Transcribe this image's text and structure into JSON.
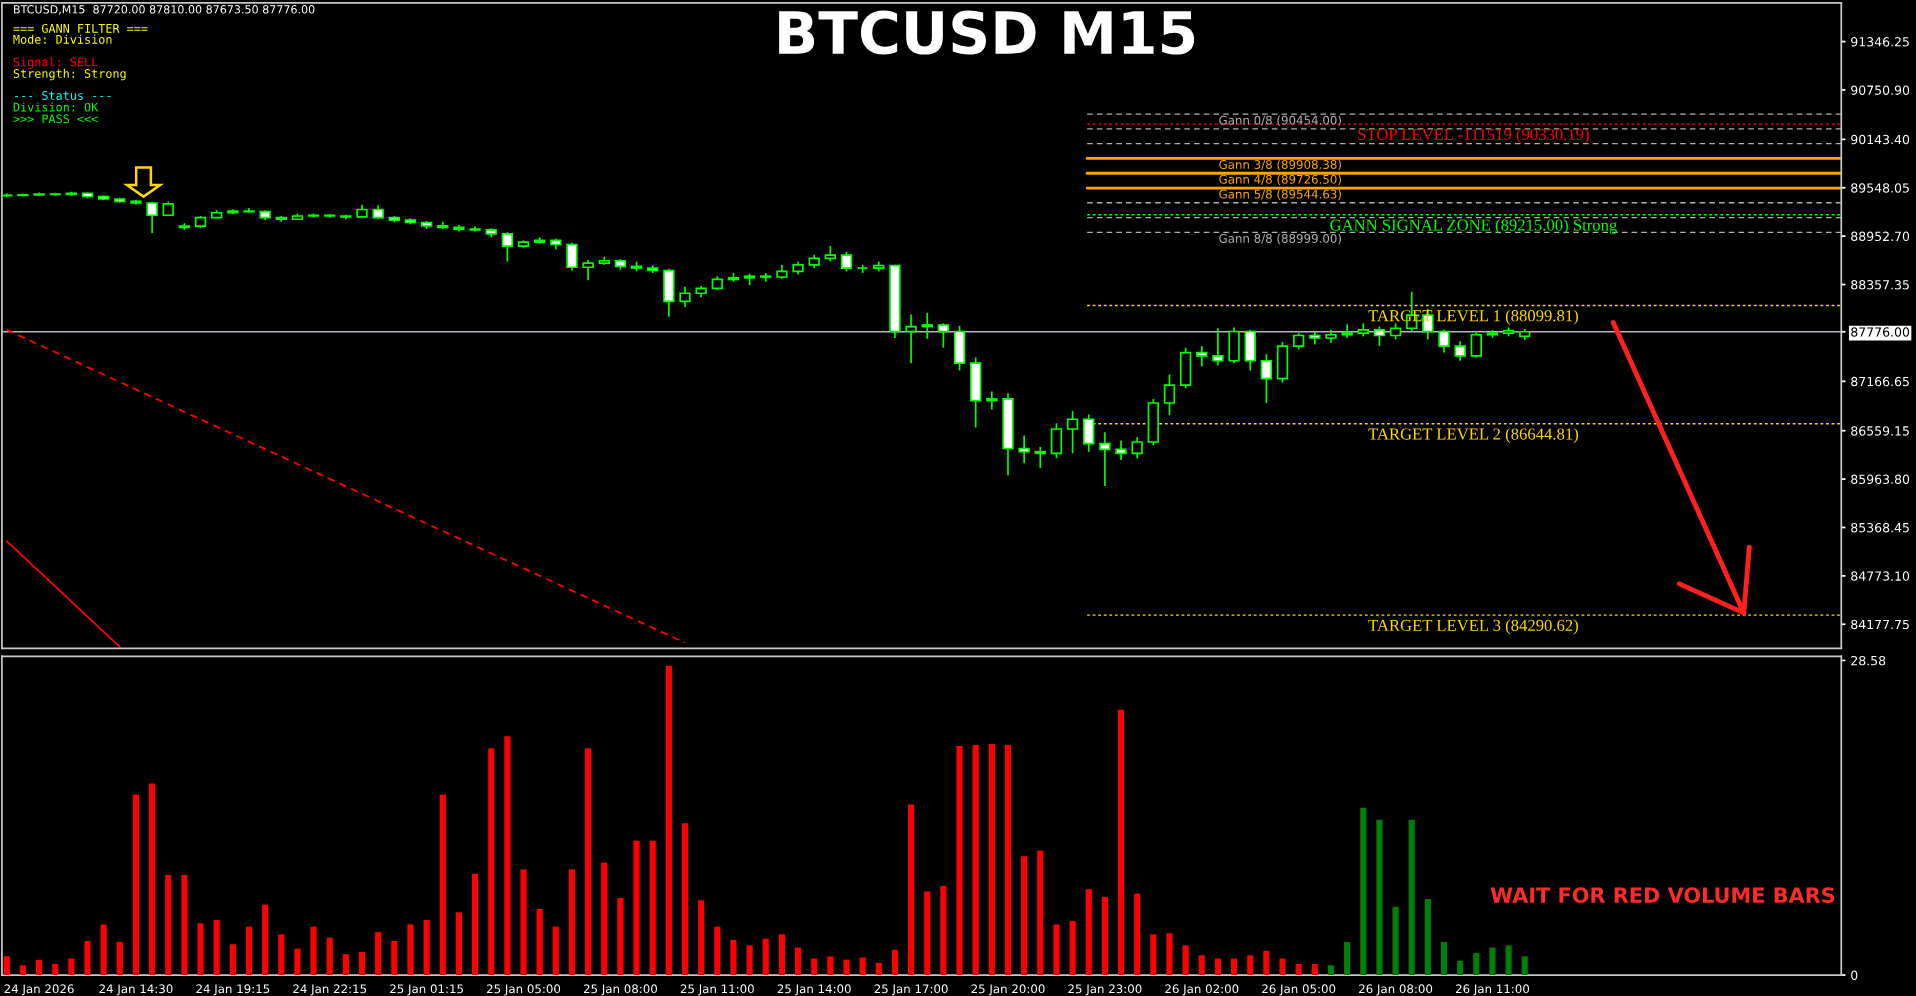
{
  "chart_data": [
    {
      "type": "candlestick",
      "title": "BTCUSD M15",
      "color": "#00ff00",
      "ohlc": [
        [
          89450,
          89480,
          89430,
          89455
        ],
        [
          89455,
          89475,
          89440,
          89460
        ],
        [
          89460,
          89490,
          89445,
          89470
        ],
        [
          89470,
          89485,
          89450,
          89465
        ],
        [
          89465,
          89500,
          89450,
          89480
        ],
        [
          89480,
          89490,
          89420,
          89440
        ],
        [
          89440,
          89455,
          89395,
          89410
        ],
        [
          89410,
          89425,
          89365,
          89380
        ],
        [
          89380,
          89400,
          89340,
          89360
        ],
        [
          89360,
          89375,
          88990,
          89210
        ],
        [
          89210,
          89380,
          89200,
          89350
        ],
        [
          89060,
          89110,
          89030,
          89075
        ],
        [
          89075,
          89200,
          89050,
          89180
        ],
        [
          89180,
          89270,
          89170,
          89240
        ],
        [
          89240,
          89285,
          89225,
          89260
        ],
        [
          89260,
          89300,
          89240,
          89255
        ],
        [
          89255,
          89270,
          89150,
          89180
        ],
        [
          89180,
          89200,
          89130,
          89160
        ],
        [
          89160,
          89230,
          89150,
          89200
        ],
        [
          89200,
          89230,
          89185,
          89210
        ],
        [
          89210,
          89225,
          89180,
          89200
        ],
        [
          89200,
          89215,
          89160,
          89190
        ],
        [
          89190,
          89340,
          89180,
          89280
        ],
        [
          89280,
          89330,
          89160,
          89180
        ],
        [
          89180,
          89200,
          89120,
          89150
        ],
        [
          89150,
          89170,
          89100,
          89120
        ],
        [
          89120,
          89140,
          89040,
          89080
        ],
        [
          89080,
          89130,
          89040,
          89060
        ],
        [
          89060,
          89090,
          89010,
          89040
        ],
        [
          89040,
          89070,
          89010,
          89030
        ],
        [
          89030,
          89050,
          88940,
          88980
        ],
        [
          88980,
          89000,
          88640,
          88830
        ],
        [
          88830,
          88900,
          88810,
          88880
        ],
        [
          88880,
          88940,
          88860,
          88900
        ],
        [
          88900,
          88920,
          88790,
          88850
        ],
        [
          88850,
          88870,
          88530,
          88570
        ],
        [
          88570,
          88660,
          88410,
          88620
        ],
        [
          88620,
          88700,
          88600,
          88650
        ],
        [
          88650,
          88670,
          88540,
          88580
        ],
        [
          88580,
          88640,
          88520,
          88560
        ],
        [
          88560,
          88590,
          88500,
          88530
        ],
        [
          88530,
          88550,
          87960,
          88150
        ],
        [
          88150,
          88330,
          88080,
          88250
        ],
        [
          88250,
          88340,
          88200,
          88310
        ],
        [
          88310,
          88460,
          88290,
          88420
        ],
        [
          88420,
          88500,
          88390,
          88440
        ],
        [
          88440,
          88490,
          88350,
          88460
        ],
        [
          88460,
          88500,
          88390,
          88450
        ],
        [
          88450,
          88600,
          88430,
          88520
        ],
        [
          88520,
          88640,
          88480,
          88600
        ],
        [
          88600,
          88720,
          88560,
          88680
        ],
        [
          88680,
          88830,
          88640,
          88720
        ],
        [
          88720,
          88760,
          88520,
          88560
        ],
        [
          88560,
          88600,
          88500,
          88560
        ],
        [
          88560,
          88640,
          88520,
          88590
        ],
        [
          88590,
          88600,
          87700,
          87780
        ],
        [
          87780,
          87990,
          87390,
          87840
        ],
        [
          87840,
          88010,
          87690,
          87860
        ],
        [
          87860,
          87880,
          87580,
          87780
        ],
        [
          87780,
          87850,
          87300,
          87390
        ],
        [
          87390,
          87460,
          86600,
          86930
        ],
        [
          86930,
          87040,
          86820,
          86950
        ],
        [
          86950,
          87020,
          86010,
          86340
        ],
        [
          86340,
          86500,
          86160,
          86300
        ],
        [
          86300,
          86360,
          86100,
          86280
        ],
        [
          86280,
          86650,
          86220,
          86580
        ],
        [
          86580,
          86800,
          86280,
          86700
        ],
        [
          86700,
          86760,
          86300,
          86400
        ],
        [
          86400,
          86540,
          85880,
          86330
        ],
        [
          86330,
          86440,
          86200,
          86280
        ],
        [
          86280,
          86480,
          86220,
          86420
        ],
        [
          86420,
          86950,
          86380,
          86900
        ],
        [
          86900,
          87250,
          86750,
          87120
        ],
        [
          87120,
          87580,
          87080,
          87520
        ],
        [
          87520,
          87600,
          87350,
          87480
        ],
        [
          87480,
          87820,
          87360,
          87420
        ],
        [
          87420,
          87830,
          87390,
          87780
        ],
        [
          87780,
          87800,
          87300,
          87420
        ],
        [
          87420,
          87500,
          86900,
          87200
        ],
        [
          87200,
          87650,
          87150,
          87600
        ],
        [
          87600,
          87760,
          87560,
          87730
        ],
        [
          87730,
          87780,
          87620,
          87700
        ],
        [
          87700,
          87800,
          87640,
          87740
        ],
        [
          87740,
          87870,
          87700,
          87760
        ],
        [
          87760,
          87880,
          87720,
          87800
        ],
        [
          87800,
          87840,
          87600,
          87730
        ],
        [
          87730,
          87880,
          87680,
          87820
        ],
        [
          87820,
          88270,
          87780,
          87980
        ],
        [
          87980,
          88060,
          87680,
          87780
        ],
        [
          87780,
          87800,
          87520,
          87600
        ],
        [
          87600,
          87660,
          87420,
          87480
        ],
        [
          87480,
          87780,
          87460,
          87740
        ],
        [
          87740,
          87800,
          87700,
          87760
        ],
        [
          87760,
          87830,
          87720,
          87790
        ],
        [
          87720,
          87810,
          87673.5,
          87776
        ],
        null,
        null,
        null,
        null,
        null,
        null,
        null,
        null,
        null,
        null,
        null,
        null,
        null,
        null,
        null,
        null,
        null,
        null,
        null
      ],
      "series": [
        {
          "type": "line",
          "color": "#ff0000",
          "line_style": "dashed",
          "values": [
            87800,
            null,
            null,
            null,
            null,
            null,
            null,
            null,
            null,
            null,
            null,
            null,
            null,
            null,
            null,
            null,
            null,
            null,
            null,
            null,
            null,
            null,
            null,
            null,
            null,
            null,
            null,
            null,
            null,
            null,
            null,
            null,
            null,
            null,
            null,
            null,
            null,
            null,
            null,
            null,
            null,
            null,
            83950,
            null,
            null,
            null,
            null,
            null,
            null,
            null,
            null,
            null,
            null,
            null,
            null,
            null,
            null,
            null,
            null,
            null,
            null,
            null,
            null,
            null,
            null,
            null,
            null,
            null,
            null,
            null,
            null,
            null,
            null,
            null,
            null,
            null,
            null,
            null,
            null,
            null,
            null,
            null,
            null,
            null,
            null,
            null,
            null,
            null,
            null,
            null,
            null,
            null,
            null,
            null,
            null,
            null,
            null,
            null,
            null,
            null,
            null,
            null,
            null,
            null,
            null,
            null,
            null,
            null,
            null,
            null,
            null,
            null,
            null,
            null
          ]
        },
        {
          "type": "line",
          "color": "#ff0000",
          "line_style": "solid",
          "values": [
            85200,
            null,
            null,
            null,
            null,
            null,
            null,
            83900,
            null,
            null,
            null,
            null,
            null,
            null,
            null,
            null,
            null,
            null,
            null,
            null,
            null,
            null,
            null,
            null,
            null,
            null,
            null,
            null,
            null,
            null,
            null,
            null,
            null,
            null,
            null,
            null,
            null,
            null,
            null,
            null,
            null,
            null,
            null,
            null,
            null,
            null,
            null,
            null,
            null,
            null,
            null,
            null,
            null,
            null,
            null,
            null,
            null,
            null,
            null,
            null,
            null,
            null,
            null,
            null,
            null,
            null,
            null,
            null,
            null,
            null,
            null,
            null,
            null,
            null,
            null,
            null,
            null,
            null,
            null,
            null,
            null,
            null,
            null,
            null,
            null,
            null,
            null,
            null,
            null,
            null,
            null,
            null,
            null,
            null,
            null,
            null,
            null,
            null,
            null,
            null,
            null,
            null,
            null,
            null,
            null,
            null,
            null,
            null,
            null,
            null,
            null,
            null,
            null,
            null
          ]
        }
      ],
      "ylim": [
        83881,
        91821
      ],
      "yticks": [
        {
          "value": 91346.25,
          "label": "91346.25"
        },
        {
          "value": 90750.9,
          "label": "90750.90"
        },
        {
          "value": 90143.4,
          "label": "90143.40"
        },
        {
          "value": 89548.05,
          "label": "89548.05"
        },
        {
          "value": 88952.7,
          "label": "88952.70"
        },
        {
          "value": 88357.35,
          "label": "88357.35"
        },
        {
          "value": 87776,
          "label": "87776.00"
        },
        {
          "value": 87166.65,
          "label": "87166.65"
        },
        {
          "value": 86559.15,
          "label": "86559.15"
        },
        {
          "value": 85963.8,
          "label": "85963.80"
        },
        {
          "value": 85368.45,
          "label": "85368.45"
        },
        {
          "value": 84773.1,
          "label": "84773.10"
        },
        {
          "value": 84177.75,
          "label": "84177.75"
        }
      ],
      "tick_labels": "y",
      "ref_lines": [
        {
          "axis": "y",
          "value": 87776,
          "color": "#b0b8c0",
          "line_style": "solid"
        },
        {
          "axis": "y",
          "value": 90454,
          "label": "Gann 0/8 (90454.00)",
          "color": "#b0b0b0",
          "line_style": "dashed"
        },
        {
          "axis": "y",
          "value": 90272.13,
          "color": "#b0b0b0",
          "line_style": "dashed"
        },
        {
          "axis": "y",
          "value": 90090.25,
          "color": "#b0b0b0",
          "line_style": "dashed"
        },
        {
          "axis": "y",
          "value": 89908.38,
          "label": "Gann 3/8 (89908.38)",
          "color": "#ffa500",
          "line_style": "solid"
        },
        {
          "axis": "y",
          "value": 89726.5,
          "label": "Gann 4/8 (89726.50)",
          "color": "#ffa500",
          "line_style": "solid"
        },
        {
          "axis": "y",
          "value": 89544.63,
          "label": "Gann 5/8 (89544.63)",
          "color": "#ffa500",
          "line_style": "solid"
        },
        {
          "axis": "y",
          "value": 89362.75,
          "color": "#b0b0b0",
          "line_style": "dashed"
        },
        {
          "axis": "y",
          "value": 89180.88,
          "color": "#b0b0b0",
          "line_style": "dashed"
        },
        {
          "axis": "y",
          "value": 88999,
          "label": "Gann 8/8 (88999.00)",
          "color": "#b0b0b0",
          "line_style": "dashed"
        },
        {
          "axis": "y",
          "value": 90330.19,
          "label": "STOP LEVEL -111519 (90330.19)",
          "color": "#ff0000",
          "line_style": "dotted"
        },
        {
          "axis": "y",
          "value": 89215,
          "label": "GANN SIGNAL ZONE (89215.00) Strong",
          "color": "#00ff00",
          "line_style": "dotted"
        },
        {
          "axis": "y",
          "value": 88099.81,
          "label": "TARGET LEVEL 1 (88099.81)",
          "color": "#ffd700",
          "line_style": "dotted"
        },
        {
          "axis": "y",
          "value": 86644.81,
          "label": "TARGET LEVEL 2 (86644.81)",
          "color": "#ffd700",
          "line_style": "dotted"
        },
        {
          "axis": "y",
          "value": 84290.62,
          "label": "TARGET LEVEL 3 (84290.62)",
          "color": "#ffd700",
          "line_style": "dotted"
        }
      ],
      "annotations": [
        "BTCUSD,M15  87720.00 87810.00 87673.50 87776.00",
        "=== GANN FILTER ===",
        "Mode: Division",
        "Signal: SELL",
        "Strength: Strong",
        "--- Status ---",
        "Division: OK",
        ">>> PASS <<<"
      ]
    },
    {
      "type": "bar",
      "categories": [
        null,
        null,
        "24 Jan 2026",
        null,
        null,
        null,
        null,
        null,
        "24 Jan 14:30",
        null,
        null,
        null,
        null,
        null,
        "24 Jan 19:15",
        null,
        null,
        null,
        null,
        null,
        "24 Jan 22:15",
        null,
        null,
        null,
        null,
        null,
        "25 Jan 01:15",
        null,
        null,
        null,
        null,
        null,
        "25 Jan 05:00",
        null,
        null,
        null,
        null,
        null,
        "25 Jan 08:00",
        null,
        null,
        null,
        null,
        null,
        "25 Jan 11:00",
        null,
        null,
        null,
        null,
        null,
        "25 Jan 14:00",
        null,
        null,
        null,
        null,
        null,
        "25 Jan 17:00",
        null,
        null,
        null,
        null,
        null,
        "25 Jan 20:00",
        null,
        null,
        null,
        null,
        null,
        "25 Jan 23:00",
        null,
        null,
        null,
        null,
        null,
        "26 Jan 02:00",
        null,
        null,
        null,
        null,
        null,
        "26 Jan 05:00",
        null,
        null,
        null,
        null,
        null,
        "26 Jan 08:00",
        null,
        null,
        null,
        null,
        null,
        "26 Jan 11:00",
        null,
        null,
        null,
        null,
        null,
        null,
        null,
        null,
        null,
        null,
        null,
        null,
        null,
        null,
        null,
        null,
        null,
        null,
        null,
        null,
        null
      ],
      "values": [
        1.7,
        0.9,
        1.4,
        1.0,
        1.5,
        3.1,
        4.6,
        3.0,
        16.4,
        17.4,
        9.1,
        9.1,
        4.7,
        5.0,
        2.8,
        4.4,
        6.4,
        3.7,
        2.4,
        4.4,
        3.4,
        1.9,
        2.1,
        3.9,
        3.1,
        4.6,
        5.0,
        16.4,
        5.7,
        9.2,
        20.6,
        21.7,
        9.6,
        6.0,
        4.4,
        9.6,
        20.6,
        10.2,
        7.0,
        12.2,
        12.2,
        28.1,
        13.8,
        6.8,
        4.4,
        3.2,
        2.7,
        3.3,
        3.7,
        2.5,
        1.5,
        1.7,
        1.4,
        1.6,
        1.1,
        2.3,
        15.5,
        7.6,
        8.1,
        20.8,
        20.9,
        21.0,
        20.9,
        10.8,
        11.3,
        4.6,
        4.9,
        7.8,
        7.1,
        24.1,
        7.4,
        3.7,
        3.8,
        2.7,
        1.8,
        1.5,
        1.5,
        1.8,
        2.2,
        1.5,
        1.0,
        1.0,
        0.9,
        3.0,
        15.2,
        14.1,
        6.2,
        14.1,
        6.9,
        3.0,
        1.3,
        2.0,
        2.5,
        2.7,
        1.7,
        null,
        null,
        null,
        null,
        null,
        null,
        null,
        null,
        null,
        null,
        null,
        null,
        null,
        null,
        null,
        null,
        null,
        null,
        null
      ],
      "colors": [
        "#ff0000",
        "#ff0000",
        "#ff0000",
        "#ff0000",
        "#ff0000",
        "#ff0000",
        "#ff0000",
        "#ff0000",
        "#ff0000",
        "#ff0000",
        "#ff0000",
        "#ff0000",
        "#ff0000",
        "#ff0000",
        "#ff0000",
        "#ff0000",
        "#ff0000",
        "#ff0000",
        "#ff0000",
        "#ff0000",
        "#ff0000",
        "#ff0000",
        "#ff0000",
        "#ff0000",
        "#ff0000",
        "#ff0000",
        "#ff0000",
        "#ff0000",
        "#ff0000",
        "#ff0000",
        "#ff0000",
        "#ff0000",
        "#ff0000",
        "#ff0000",
        "#ff0000",
        "#ff0000",
        "#ff0000",
        "#ff0000",
        "#ff0000",
        "#ff0000",
        "#ff0000",
        "#ff0000",
        "#ff0000",
        "#ff0000",
        "#ff0000",
        "#ff0000",
        "#ff0000",
        "#ff0000",
        "#ff0000",
        "#ff0000",
        "#ff0000",
        "#ff0000",
        "#ff0000",
        "#ff0000",
        "#ff0000",
        "#ff0000",
        "#ff0000",
        "#ff0000",
        "#ff0000",
        "#ff0000",
        "#ff0000",
        "#ff0000",
        "#ff0000",
        "#ff0000",
        "#ff0000",
        "#ff0000",
        "#ff0000",
        "#ff0000",
        "#ff0000",
        "#ff0000",
        "#ff0000",
        "#ff0000",
        "#ff0000",
        "#ff0000",
        "#ff0000",
        "#ff0000",
        "#ff0000",
        "#ff0000",
        "#ff0000",
        "#ff0000",
        "#ff0000",
        "#ff0000",
        "#008000",
        "#008000",
        "#008000",
        "#008000",
        "#008000",
        "#008000",
        "#008000",
        "#008000",
        "#008000",
        "#008000",
        "#008000",
        "#008000",
        "#008000",
        null,
        null,
        null,
        null,
        null,
        null,
        null,
        null,
        null,
        null,
        null,
        null,
        null,
        null,
        null,
        null,
        null,
        null,
        null
      ],
      "ylim": [
        0,
        28.95
      ],
      "yticks": [
        0,
        28.58
      ],
      "annotations": [
        "WAIT FOR RED VOLUME BARS"
      ]
    }
  ]
}
